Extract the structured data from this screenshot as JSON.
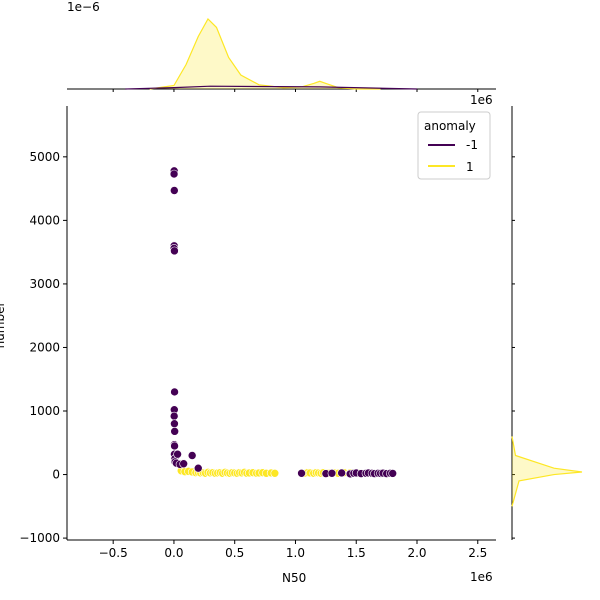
{
  "chart_data": {
    "type": "scatter",
    "xlabel": "N50",
    "ylabel": "number",
    "x_offset_text": "1e6",
    "marginal_x_offset_text": "1e−6",
    "marginal_y_offset_text": "1e6",
    "xlim": [
      -880000,
      2650000
    ],
    "ylim": [
      -1030000,
      5800
    ],
    "ylim_data": [
      -1030,
      5800
    ],
    "x_ticks": [
      -500000,
      0,
      500000,
      1000000,
      1500000,
      2000000,
      2500000
    ],
    "x_tick_labels": [
      "−0.5",
      "0.0",
      "0.5",
      "1.0",
      "1.5",
      "2.0",
      "2.5"
    ],
    "y_ticks": [
      -1000,
      0,
      1000,
      2000,
      3000,
      4000,
      5000
    ],
    "y_tick_labels": [
      "−1000",
      "0",
      "1000",
      "2000",
      "3000",
      "4000",
      "5000"
    ],
    "grid": false,
    "legend": {
      "title": "anomaly",
      "placement": "top-right",
      "entries": [
        {
          "label": "-1",
          "color": "#440154"
        },
        {
          "label": "1",
          "color": "#fde725"
        }
      ]
    },
    "series": [
      {
        "name": "-1",
        "color": "#440154",
        "x": [
          2000,
          1000,
          3000,
          2000,
          1000,
          4000,
          5000,
          3000,
          2000,
          4000,
          6000,
          3000,
          5000,
          4000,
          8000,
          10000,
          20000,
          30000,
          50000,
          80000,
          150000,
          200000,
          1050000,
          1250000,
          1300000,
          1380000,
          1450000,
          1480000,
          1500000,
          1540000,
          1580000,
          1600000,
          1630000,
          1650000,
          1680000,
          1700000,
          1720000,
          1750000,
          1780000,
          1800000
        ],
        "y": [
          4780,
          4730,
          4470,
          3600,
          3560,
          3520,
          1300,
          1020,
          920,
          800,
          680,
          470,
          450,
          320,
          250,
          200,
          180,
          320,
          160,
          170,
          300,
          100,
          20,
          15,
          20,
          25,
          10,
          20,
          25,
          15,
          20,
          25,
          20,
          15,
          20,
          18,
          22,
          15,
          20,
          18
        ]
      },
      {
        "name": "1",
        "color": "#fde725",
        "x": [
          60000,
          90000,
          120000,
          150000,
          180000,
          200000,
          220000,
          240000,
          260000,
          280000,
          300000,
          320000,
          340000,
          360000,
          380000,
          400000,
          420000,
          440000,
          460000,
          480000,
          500000,
          520000,
          540000,
          560000,
          580000,
          600000,
          620000,
          650000,
          680000,
          700000,
          730000,
          760000,
          800000,
          830000,
          1050000,
          1080000,
          1100000,
          1120000,
          1150000,
          1170000,
          1190000,
          1210000,
          1230000,
          1260000,
          1280000,
          1320000,
          1350000,
          1400000,
          1450000,
          1520000
        ],
        "y": [
          60,
          45,
          50,
          40,
          30,
          35,
          25,
          30,
          20,
          35,
          25,
          30,
          20,
          25,
          30,
          20,
          35,
          25,
          20,
          30,
          25,
          20,
          30,
          25,
          35,
          20,
          25,
          30,
          20,
          25,
          30,
          20,
          25,
          20,
          25,
          20,
          30,
          25,
          20,
          30,
          25,
          20,
          30,
          25,
          20,
          25,
          20,
          30,
          25,
          20
        ]
      }
    ],
    "marginal_x_density": {
      "-1": {
        "x": [
          -400000,
          0,
          300000,
          1200000,
          2000000
        ],
        "y": [
          0.0,
          0.02,
          0.04,
          0.03,
          0.0
        ]
      },
      "1": {
        "x": [
          -200000,
          0,
          100000,
          200000,
          280000,
          350000,
          450000,
          550000,
          700000,
          900000,
          1050000,
          1150000,
          1200000,
          1250000,
          1350000,
          1500000,
          1700000
        ],
        "y": [
          0.0,
          0.05,
          0.35,
          0.75,
          1.0,
          0.88,
          0.45,
          0.2,
          0.06,
          0.02,
          0.03,
          0.08,
          0.11,
          0.08,
          0.02,
          0.0,
          0.0
        ]
      }
    },
    "marginal_y_density": {
      "1": {
        "y": [
          -500,
          -100,
          0,
          40,
          100,
          300,
          600
        ],
        "v": [
          0.0,
          0.1,
          0.6,
          1.0,
          0.6,
          0.05,
          0.0
        ]
      }
    }
  }
}
